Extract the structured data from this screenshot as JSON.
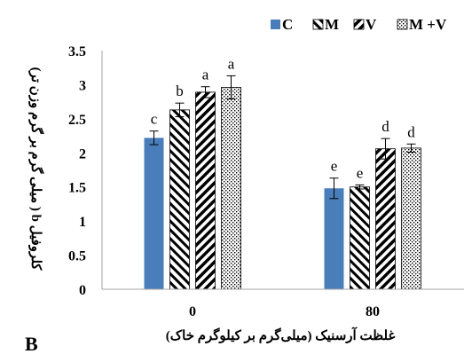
{
  "chart_data": {
    "type": "bar",
    "panel_label": "B",
    "xlabel": "غلظت آرسنیک (میلی‌گرم بر کیلوگرم خاک)",
    "ylabel": "کلروفیل b ( میلی گرم بر گرم وزن تر)",
    "categories": [
      "0",
      "80"
    ],
    "ylim": [
      0,
      3.5
    ],
    "yticks": [
      "0",
      "0.5",
      "1",
      "1.5",
      "2",
      "2.5",
      "3",
      "3.5"
    ],
    "ytick_values": [
      0,
      0.5,
      1,
      1.5,
      2,
      2.5,
      3,
      3.5
    ],
    "legend_position": "top-right",
    "grid": false,
    "series": [
      {
        "name": "C",
        "pattern": "solid",
        "color": "#4a7ebb",
        "values": [
          2.22,
          1.48
        ],
        "errors": [
          0.1,
          0.15
        ],
        "letters": [
          "c",
          "e"
        ]
      },
      {
        "name": "M",
        "pattern": "back-diagonal",
        "color": "#000000",
        "values": [
          2.63,
          1.5
        ],
        "errors": [
          0.1,
          0.03
        ],
        "letters": [
          "b",
          "e"
        ]
      },
      {
        "name": "V",
        "pattern": "forward-diagonal",
        "color": "#000000",
        "values": [
          2.89,
          2.06
        ],
        "errors": [
          0.08,
          0.15
        ],
        "letters": [
          "a",
          "d"
        ]
      },
      {
        "name": "M +V",
        "pattern": "dots",
        "color": "#000000",
        "values": [
          2.96,
          2.07
        ],
        "errors": [
          0.17,
          0.06
        ],
        "letters": [
          "a",
          "d"
        ]
      }
    ]
  }
}
